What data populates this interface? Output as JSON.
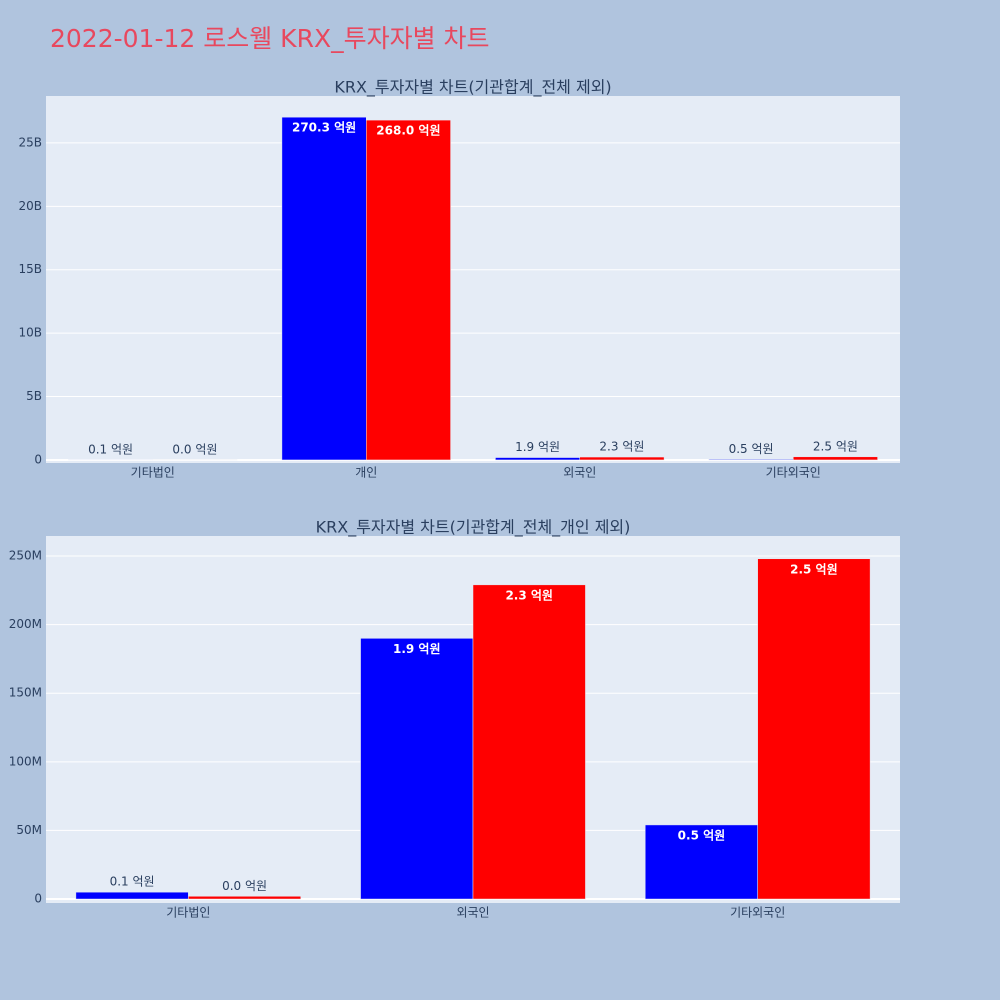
{
  "title": "2022-01-12 로스웰 KRX_투자자별 차트",
  "chart_data": [
    {
      "type": "bar",
      "title": "KRX_투자자별 차트(기관합계_전체 제외)",
      "categories": [
        "기타법인",
        "개인",
        "외국인",
        "기타외국인"
      ],
      "series": [
        {
          "color": "#0000ff",
          "values": [
            5000000,
            27030000000,
            190000000,
            54000000
          ],
          "value_labels": [
            "0.1 억원",
            "270.3 억원",
            "1.9 억원",
            "0.5 억원"
          ]
        },
        {
          "color": "#ff0000",
          "values": [
            2000000,
            26800000000,
            229000000,
            248000000
          ],
          "value_labels": [
            "0.0 억원",
            "268.0 억원",
            "2.3 억원",
            "2.5 억원"
          ]
        }
      ],
      "ylim": [
        -240000000,
        28700000000
      ],
      "yticks": [
        0,
        {
          "value": 5000000000,
          "label": "5B"
        },
        {
          "value": 10000000000,
          "label": "10B"
        },
        {
          "value": 15000000000,
          "label": "15B"
        },
        {
          "value": 20000000000,
          "label": "20B"
        },
        {
          "value": 25000000000,
          "label": "25B"
        }
      ],
      "grid": true
    },
    {
      "type": "bar",
      "title": "KRX_투자자별 차트(기관합계_전체_개인 제외)",
      "categories": [
        "기타법인",
        "외국인",
        "기타외국인"
      ],
      "series": [
        {
          "color": "#0000ff",
          "values": [
            5000000,
            190000000,
            54000000
          ],
          "value_labels": [
            "0.1 억원",
            "1.9 억원",
            "0.5 억원"
          ]
        },
        {
          "color": "#ff0000",
          "values": [
            2000000,
            229000000,
            248000000
          ],
          "value_labels": [
            "0.0 억원",
            "2.3 억원",
            "2.5 억원"
          ]
        }
      ],
      "ylim": [
        -2900000,
        264600000
      ],
      "yticks": [
        0,
        {
          "value": 50000000,
          "label": "50M"
        },
        {
          "value": 100000000,
          "label": "100M"
        },
        {
          "value": 150000000,
          "label": "150M"
        },
        {
          "value": 200000000,
          "label": "200M"
        },
        {
          "value": 250000000,
          "label": "250M"
        }
      ],
      "grid": true
    }
  ]
}
